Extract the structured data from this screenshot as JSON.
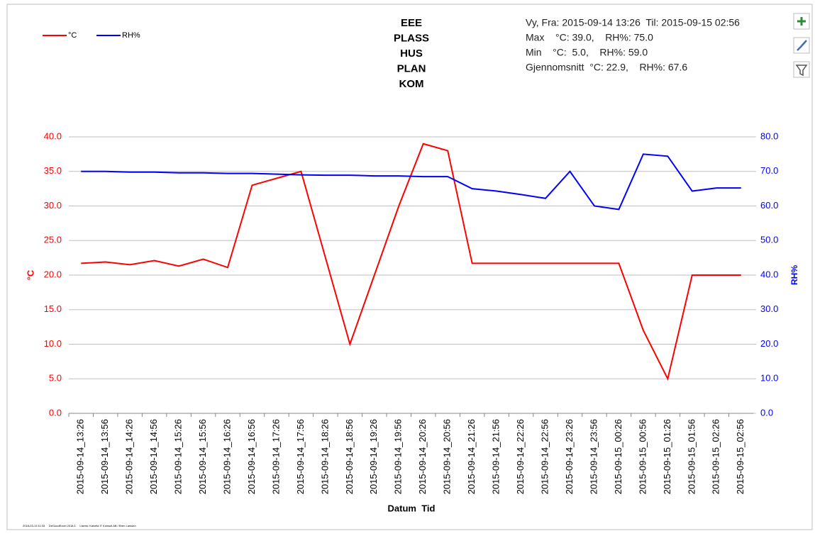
{
  "chart_data": {
    "type": "line",
    "title_lines": [
      "EEE",
      "PLASS",
      "HUS",
      "PLAN",
      "KOM"
    ],
    "info_lines": [
      "Vy, Fra: 2015-09-14 13:26  Til: 2015-09-15 02:56",
      "Max    °C: 39.0,    RH%: 75.0",
      "Min    °C:  5.0,    RH%: 59.0",
      "Gjennomsnitt  °C: 22.9,    RH%: 67.6"
    ],
    "x_label": "Datum  Tid",
    "y_label": "°C",
    "y2_label": "RH%",
    "footer": "2018-03-13 11:33     DeGoodExcel 2018.1     Lisens: Kalvela IT Konsult AB / Bren Larssen",
    "categories": [
      "2015-09-14_13:26",
      "2015-09-14_13:56",
      "2015-09-14_14:26",
      "2015-09-14_14:56",
      "2015-09-14_15:26",
      "2015-09-14_15:56",
      "2015-09-14_16:26",
      "2015-09-14_16:56",
      "2015-09-14_17:26",
      "2015-09-14_17:56",
      "2015-09-14_18:26",
      "2015-09-14_18:56",
      "2015-09-14_19:26",
      "2015-09-14_19:56",
      "2015-09-14_20:26",
      "2015-09-14_20:56",
      "2015-09-14_21:26",
      "2015-09-14_21:56",
      "2015-09-14_22:26",
      "2015-09-14_22:56",
      "2015-09-14_23:26",
      "2015-09-14_23:56",
      "2015-09-15_00:26",
      "2015-09-15_00:56",
      "2015-09-15_01:26",
      "2015-09-15_01:56",
      "2015-09-15_02:26",
      "2015-09-15_02:56"
    ],
    "series": [
      {
        "name": "°C",
        "color": "#ff0000",
        "values": [
          21.7,
          21.9,
          21.5,
          22.1,
          21.3,
          22.3,
          21.1,
          33,
          34,
          35,
          22.5,
          10,
          20,
          30,
          39,
          38,
          21.7,
          21.7,
          21.7,
          21.7,
          21.7,
          21.7,
          21.7,
          12,
          5,
          20,
          20,
          20
        ]
      },
      {
        "name": "RH%",
        "color": "#0000ff",
        "axis": "y2",
        "values": [
          70,
          70,
          69.8,
          69.8,
          69.6,
          69.6,
          69.4,
          69.4,
          69.2,
          69,
          68.9,
          68.9,
          68.7,
          68.7,
          68.5,
          68.5,
          65,
          64.3,
          63.3,
          62.2,
          70,
          60,
          59,
          75,
          74.4,
          64.3,
          65.2,
          65.2
        ]
      }
    ],
    "ylim": [
      0,
      40
    ],
    "yticks": [
      {
        "value": 0,
        "label": "0.0"
      },
      {
        "value": 5,
        "label": "5.0"
      },
      {
        "value": 10,
        "label": "10.0"
      },
      {
        "value": 15,
        "label": "15.0"
      },
      {
        "value": 20,
        "label": "20.0"
      },
      {
        "value": 25,
        "label": "25.0"
      },
      {
        "value": 30,
        "label": "30.0"
      },
      {
        "value": 35,
        "label": "35.0"
      },
      {
        "value": 40,
        "label": "40.0"
      }
    ],
    "y2lim": [
      0,
      80
    ],
    "y2ticks": [
      {
        "value": 0,
        "label": "0.0"
      },
      {
        "value": 10,
        "label": "10.0"
      },
      {
        "value": 20,
        "label": "20.0"
      },
      {
        "value": 30,
        "label": "30.0"
      },
      {
        "value": 40,
        "label": "40.0"
      },
      {
        "value": 50,
        "label": "50.0"
      },
      {
        "value": 60,
        "label": "60.0"
      },
      {
        "value": 70,
        "label": "70.0"
      },
      {
        "value": 80,
        "label": "80.0"
      }
    ],
    "grid": true,
    "legend": "top-left"
  }
}
